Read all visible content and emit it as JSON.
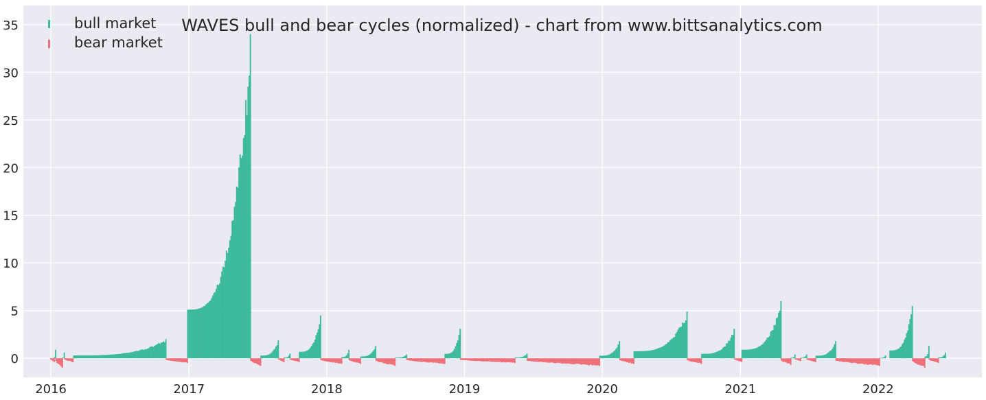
{
  "chart_data": {
    "type": "bar",
    "title": "WAVES bull and bear cycles (normalized)  - chart from www.bittsanalytics.com",
    "xlabel": "",
    "ylabel": "",
    "x_range": [
      "2015-10-20",
      "2022-10-03"
    ],
    "ylim": [
      -2,
      37
    ],
    "x_ticks": [
      {
        "label": "2016",
        "date": "2016-01-01"
      },
      {
        "label": "2017",
        "date": "2017-01-01"
      },
      {
        "label": "2018",
        "date": "2018-01-01"
      },
      {
        "label": "2019",
        "date": "2019-01-01"
      },
      {
        "label": "2020",
        "date": "2020-01-01"
      },
      {
        "label": "2021",
        "date": "2021-01-01"
      },
      {
        "label": "2022",
        "date": "2022-01-01"
      }
    ],
    "y_ticks": [
      0,
      5,
      10,
      15,
      20,
      25,
      30,
      35
    ],
    "grid": true,
    "legend": {
      "placement": "top-left",
      "entries": [
        "bull market",
        "bear market"
      ]
    },
    "colors": {
      "bull": "#3dba9b",
      "bear": "#f0707a",
      "background": "#eaeaf2",
      "grid": "#ffffff"
    },
    "series": [
      {
        "name": "bull market",
        "segments": [
          {
            "start": "2016-01-10",
            "end": "2016-01-13",
            "peak": 0.9
          },
          {
            "start": "2016-02-01",
            "end": "2016-02-05",
            "peak": 0.6
          },
          {
            "start": "2016-03-01",
            "end": "2016-10-31",
            "peak": 2.0
          },
          {
            "start": "2016-12-28",
            "end": "2017-06-12",
            "peak": 34.0
          },
          {
            "start": "2017-07-10",
            "end": "2017-08-25",
            "peak": 1.9
          },
          {
            "start": "2017-09-10",
            "end": "2017-09-25",
            "peak": 0.5
          },
          {
            "start": "2017-10-20",
            "end": "2017-12-15",
            "peak": 4.5
          },
          {
            "start": "2018-02-10",
            "end": "2018-02-28",
            "peak": 0.9
          },
          {
            "start": "2018-04-01",
            "end": "2018-05-10",
            "peak": 1.3
          },
          {
            "start": "2018-07-01",
            "end": "2018-07-31",
            "peak": 0.4
          },
          {
            "start": "2018-11-10",
            "end": "2018-12-20",
            "peak": 3.1
          },
          {
            "start": "2019-05-15",
            "end": "2019-06-15",
            "peak": 0.5
          },
          {
            "start": "2019-12-25",
            "end": "2020-02-15",
            "peak": 1.8
          },
          {
            "start": "2020-03-25",
            "end": "2020-08-12",
            "peak": 4.9
          },
          {
            "start": "2020-09-20",
            "end": "2020-12-15",
            "peak": 3.1
          },
          {
            "start": "2021-01-05",
            "end": "2021-04-18",
            "peak": 6.0
          },
          {
            "start": "2021-05-15",
            "end": "2021-05-25",
            "peak": 0.4
          },
          {
            "start": "2021-06-10",
            "end": "2021-06-25",
            "peak": 0.4
          },
          {
            "start": "2021-07-20",
            "end": "2021-09-10",
            "peak": 1.8
          },
          {
            "start": "2022-01-05",
            "end": "2022-01-20",
            "peak": 0.3
          },
          {
            "start": "2022-02-01",
            "end": "2022-04-01",
            "peak": 5.5
          },
          {
            "start": "2022-05-05",
            "end": "2022-05-15",
            "peak": 1.3
          },
          {
            "start": "2022-06-10",
            "end": "2022-06-28",
            "peak": 0.6
          }
        ]
      },
      {
        "name": "bear market",
        "segments": [
          {
            "start": "2015-12-31",
            "end": "2016-01-09",
            "trough": -0.4
          },
          {
            "start": "2016-01-14",
            "end": "2016-01-31",
            "trough": -1.0
          },
          {
            "start": "2016-02-06",
            "end": "2016-02-28",
            "trough": -0.4
          },
          {
            "start": "2016-11-01",
            "end": "2016-12-27",
            "trough": -0.5
          },
          {
            "start": "2017-06-13",
            "end": "2017-07-09",
            "trough": -0.8
          },
          {
            "start": "2017-08-26",
            "end": "2017-09-09",
            "trough": -0.4
          },
          {
            "start": "2017-09-26",
            "end": "2017-10-19",
            "trough": -0.4
          },
          {
            "start": "2017-12-16",
            "end": "2018-02-09",
            "trough": -0.6
          },
          {
            "start": "2018-03-01",
            "end": "2018-03-31",
            "trough": -0.6
          },
          {
            "start": "2018-05-11",
            "end": "2018-06-30",
            "trough": -0.8
          },
          {
            "start": "2018-08-01",
            "end": "2018-11-09",
            "trough": -0.6
          },
          {
            "start": "2018-12-21",
            "end": "2019-05-14",
            "trough": -0.5
          },
          {
            "start": "2019-06-16",
            "end": "2019-12-24",
            "trough": -0.8
          },
          {
            "start": "2020-02-16",
            "end": "2020-03-24",
            "trough": -0.6
          },
          {
            "start": "2020-08-13",
            "end": "2020-09-19",
            "trough": -0.6
          },
          {
            "start": "2020-12-16",
            "end": "2021-01-04",
            "trough": -0.4
          },
          {
            "start": "2021-04-19",
            "end": "2021-05-14",
            "trough": -0.7
          },
          {
            "start": "2021-05-26",
            "end": "2021-06-09",
            "trough": -0.3
          },
          {
            "start": "2021-06-26",
            "end": "2021-07-19",
            "trough": -0.4
          },
          {
            "start": "2021-09-11",
            "end": "2022-01-04",
            "trough": -0.8
          },
          {
            "start": "2022-04-02",
            "end": "2022-05-04",
            "trough": -1.0
          },
          {
            "start": "2022-05-16",
            "end": "2022-06-09",
            "trough": -0.5
          }
        ]
      }
    ]
  }
}
